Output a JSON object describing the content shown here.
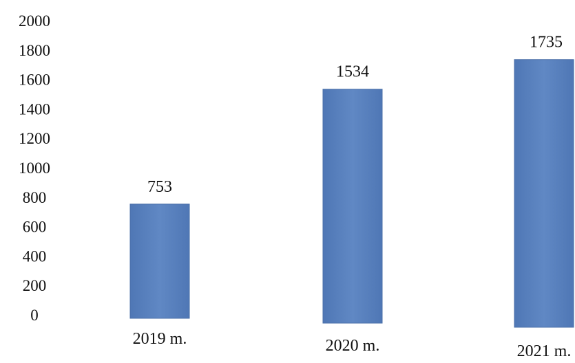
{
  "chart_data": {
    "type": "bar",
    "categories": [
      "2019 m.",
      "2020 m.",
      "2021 m."
    ],
    "values": [
      753,
      1534,
      1735
    ],
    "value_labels": [
      "753",
      "1534",
      "1735"
    ],
    "y_ticks": [
      "2000",
      "1800",
      "1600",
      "1400",
      "1200",
      "1000",
      "800",
      "600",
      "400",
      "200",
      "0"
    ],
    "ylim": [
      0,
      2000
    ],
    "grid": false,
    "legend": "none",
    "bar_color": "#5A82BE"
  }
}
